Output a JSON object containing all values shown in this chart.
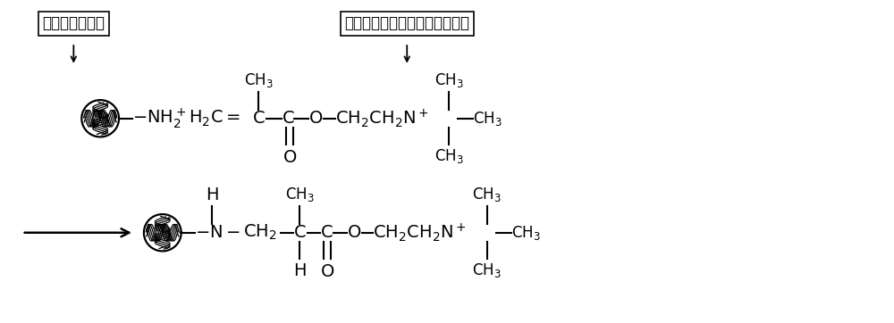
{
  "bg": "#ffffff",
  "lc": "#000000",
  "label1": "胶原多肽纳米球",
  "label2": "甲基丙烯酰氧乙基三甲基氯化铵",
  "fig_w": 10.0,
  "fig_h": 3.62,
  "dpi": 100
}
